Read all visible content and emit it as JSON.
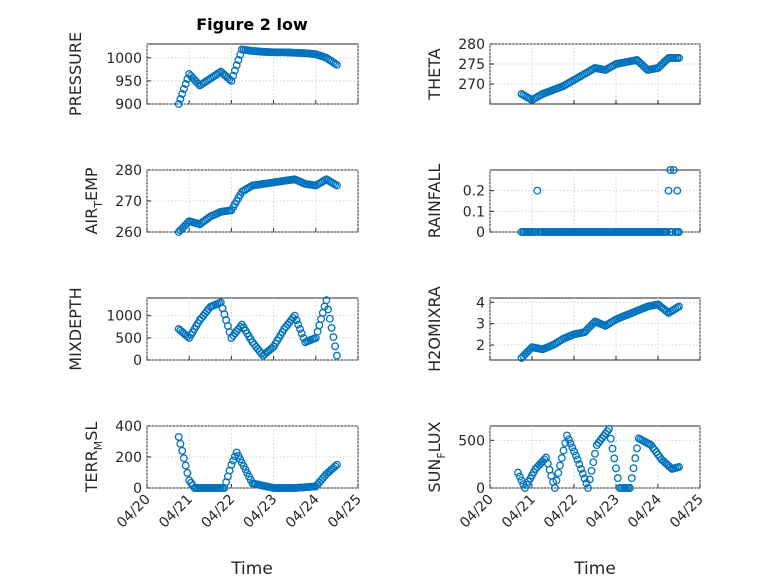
{
  "title": "Figure 2 low",
  "series_color": "#0072BD",
  "chart_data": [
    {
      "type": "scatter",
      "ylabel": "PRESSURE",
      "ylim": [
        900,
        1030
      ],
      "yticks": [
        "900",
        "950",
        "1000"
      ],
      "yticks_v": [
        900,
        950,
        1000
      ],
      "x": [
        "04/20 18:00",
        "04/21 00:00",
        "04/21 06:00",
        "04/21 12:00",
        "04/21 18:00",
        "04/22 00:00",
        "04/22 06:00",
        "04/22 12:00",
        "04/22 18:00",
        "04/23 00:00",
        "04/23 06:00",
        "04/23 12:00",
        "04/23 18:00",
        "04/24 00:00",
        "04/24 06:00",
        "04/24 12:00"
      ],
      "y": [
        900,
        965,
        940,
        955,
        970,
        950,
        1018,
        1015,
        1013,
        1012,
        1012,
        1011,
        1010,
        1008,
        1000,
        985
      ]
    },
    {
      "type": "scatter",
      "ylabel": "THETA",
      "ylim": [
        265,
        280
      ],
      "yticks": [
        "270",
        "275",
        "280"
      ],
      "yticks_v": [
        270,
        275,
        280
      ],
      "x": [
        "04/20 18:00",
        "04/21 00:00",
        "04/21 06:00",
        "04/21 12:00",
        "04/21 18:00",
        "04/22 00:00",
        "04/22 06:00",
        "04/22 12:00",
        "04/22 18:00",
        "04/23 00:00",
        "04/23 06:00",
        "04/23 12:00",
        "04/23 18:00",
        "04/24 00:00",
        "04/24 06:00",
        "04/24 12:00"
      ],
      "y": [
        267.5,
        266,
        267.5,
        268.5,
        269.5,
        271,
        272.5,
        274,
        273.5,
        275,
        275.5,
        276,
        273.5,
        274,
        276.5,
        276.5
      ]
    },
    {
      "type": "scatter",
      "ylabel": "AIR_TEMP",
      "ylim": [
        260,
        280
      ],
      "yticks": [
        "260",
        "270",
        "280"
      ],
      "yticks_v": [
        260,
        270,
        280
      ],
      "x": [
        "04/20 18:00",
        "04/21 00:00",
        "04/21 06:00",
        "04/21 12:00",
        "04/21 18:00",
        "04/22 00:00",
        "04/22 06:00",
        "04/22 12:00",
        "04/22 18:00",
        "04/23 00:00",
        "04/23 06:00",
        "04/23 12:00",
        "04/23 18:00",
        "04/24 00:00",
        "04/24 06:00",
        "04/24 12:00"
      ],
      "y": [
        260,
        263.5,
        262.5,
        265,
        266.5,
        267,
        273,
        275,
        275.5,
        276,
        276.5,
        277,
        275.5,
        275,
        277,
        275
      ]
    },
    {
      "type": "scatter",
      "ylabel": "RAINFALL",
      "ylim": [
        0,
        0.3
      ],
      "yticks": [
        "0",
        "0.1",
        "0.2"
      ],
      "yticks_v": [
        0,
        0.1,
        0.2
      ],
      "x": [
        "04/20 18:00",
        "04/21 03:00",
        "04/21 12:00",
        "04/22 00:00",
        "04/22 12:00",
        "04/23 00:00",
        "04/23 12:00",
        "04/24 00:00",
        "04/24 06:00",
        "04/24 09:00",
        "04/24 12:00"
      ],
      "y": [
        0,
        0.2,
        0,
        0,
        0,
        0,
        0,
        0,
        0.2,
        0.3,
        0
      ]
    },
    {
      "type": "scatter",
      "ylabel": "MIXDEPTH",
      "ylim": [
        0,
        1400
      ],
      "yticks": [
        "0",
        "500",
        "1000"
      ],
      "yticks_v": [
        0,
        500,
        1000
      ],
      "x": [
        "04/20 18:00",
        "04/21 00:00",
        "04/21 06:00",
        "04/21 12:00",
        "04/21 18:00",
        "04/22 00:00",
        "04/22 06:00",
        "04/22 12:00",
        "04/22 18:00",
        "04/23 00:00",
        "04/23 06:00",
        "04/23 12:00",
        "04/23 18:00",
        "04/24 00:00",
        "04/24 06:00",
        "04/24 12:00"
      ],
      "y": [
        700,
        500,
        900,
        1200,
        1300,
        500,
        800,
        400,
        100,
        300,
        700,
        1000,
        400,
        500,
        1350,
        100
      ]
    },
    {
      "type": "scatter",
      "ylabel": "H2OMIXRA",
      "ylim": [
        1.3,
        4.2
      ],
      "yticks": [
        "2",
        "3",
        "4"
      ],
      "yticks_v": [
        2,
        3,
        4
      ],
      "x": [
        "04/20 18:00",
        "04/21 00:00",
        "04/21 06:00",
        "04/21 12:00",
        "04/21 18:00",
        "04/22 00:00",
        "04/22 06:00",
        "04/22 12:00",
        "04/22 18:00",
        "04/23 00:00",
        "04/23 06:00",
        "04/23 12:00",
        "04/23 18:00",
        "04/24 00:00",
        "04/24 06:00",
        "04/24 12:00"
      ],
      "y": [
        1.4,
        1.9,
        1.8,
        2.0,
        2.3,
        2.5,
        2.6,
        3.1,
        2.9,
        3.2,
        3.4,
        3.6,
        3.8,
        3.9,
        3.5,
        3.8
      ]
    },
    {
      "type": "scatter",
      "ylabel": "TERR_MSL",
      "ylim": [
        0,
        400
      ],
      "yticks": [
        "0",
        "200",
        "400"
      ],
      "yticks_v": [
        0,
        200,
        400
      ],
      "x": [
        "04/20 18:00",
        "04/20 20:00",
        "04/21 00:00",
        "04/21 03:00",
        "04/21 12:00",
        "04/21 20:00",
        "04/22 00:00",
        "04/22 03:00",
        "04/22 12:00",
        "04/23 00:00",
        "04/23 12:00",
        "04/24 00:00",
        "04/24 06:00",
        "04/24 12:00"
      ],
      "y": [
        330,
        240,
        50,
        0,
        0,
        0,
        150,
        230,
        30,
        0,
        0,
        10,
        90,
        150
      ]
    },
    {
      "type": "scatter",
      "ylabel": "SUN_FLUX",
      "ylim": [
        0,
        650
      ],
      "yticks": [
        "0",
        "500"
      ],
      "yticks_v": [
        0,
        500
      ],
      "x": [
        "04/20 16:00",
        "04/20 20:00",
        "04/21 02:00",
        "04/21 08:00",
        "04/21 13:00",
        "04/21 20:00",
        "04/22 02:00",
        "04/22 08:00",
        "04/22 13:00",
        "04/22 20:00",
        "04/23 02:00",
        "04/23 08:00",
        "04/23 13:00",
        "04/23 20:00",
        "04/24 02:00",
        "04/24 08:00",
        "04/24 12:00"
      ],
      "y": [
        160,
        0,
        200,
        320,
        0,
        550,
        300,
        0,
        450,
        620,
        0,
        0,
        520,
        450,
        300,
        200,
        220
      ]
    }
  ],
  "x_axis": {
    "start": "2021-04-20T00:00:00",
    "end": "2021-04-25T00:00:00",
    "ticks": [
      "04/20",
      "04/21",
      "04/22",
      "04/23",
      "04/24",
      "04/25"
    ],
    "label": "Time"
  }
}
